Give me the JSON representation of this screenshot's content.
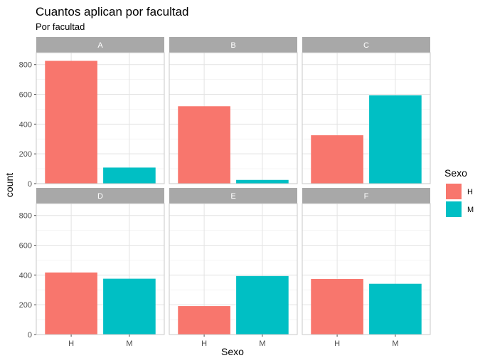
{
  "chart_data": {
    "type": "bar",
    "title": "Cuantos aplican por facultad",
    "subtitle": "Por facultad",
    "xlabel": "Sexo",
    "ylabel": "count",
    "ylim": [
      0,
      880
    ],
    "y_ticks": [
      0,
      200,
      400,
      600,
      800
    ],
    "categories": [
      "H",
      "M"
    ],
    "grid": true,
    "legend": {
      "title": "Sexo",
      "position": "right",
      "entries": [
        {
          "label": "H",
          "color": "#F8766D"
        },
        {
          "label": "M",
          "color": "#00BFC4"
        }
      ]
    },
    "facets": [
      {
        "label": "A",
        "values": [
          825,
          108
        ]
      },
      {
        "label": "B",
        "values": [
          520,
          25
        ]
      },
      {
        "label": "C",
        "values": [
          325,
          593
        ]
      },
      {
        "label": "D",
        "values": [
          417,
          375
        ]
      },
      {
        "label": "E",
        "values": [
          191,
          393
        ]
      },
      {
        "label": "F",
        "values": [
          373,
          341
        ]
      }
    ]
  }
}
